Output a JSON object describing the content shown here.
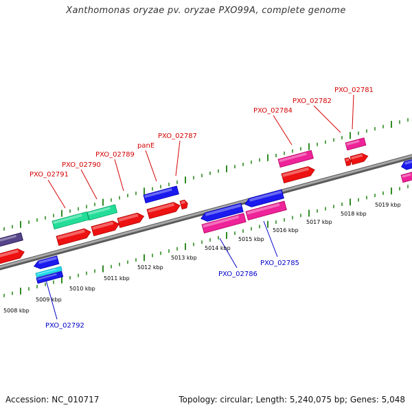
{
  "title": "Xanthomonas oryzae pv. oryzae PXO99A, complete genome",
  "accession": "Accession: NC_010717",
  "summary": "Topology: circular; Length: 5,240,075 bp; Genes: 5,048",
  "colors": {
    "backbone": "#8c8c8c",
    "tick": "#2e8b22",
    "fwd_cds": "#ee1111",
    "fwd_gene_teal": "#22dd99",
    "fwd_gene_pink": "#ee2299",
    "rev_cds": "#1a1aee",
    "rev_gene_pink": "#ee2299",
    "rev_gene_cyan": "#22ddee",
    "purple": "#554488",
    "label_fwd": "#d40000",
    "label_rev": "#0000c8"
  },
  "tick_labels": [
    "5008 kbp",
    "5009 kbp",
    "5010 kbp",
    "5011 kbp",
    "5012 kbp",
    "5013 kbp",
    "5014 kbp",
    "5015 kbp",
    "5016 kbp",
    "5017 kbp",
    "5018 kbp",
    "5019 kbp"
  ],
  "forward_genes": [
    "PXO_02791",
    "PXO_02790",
    "PXO_02789",
    "panE",
    "PXO_02787",
    "PXO_02784",
    "PXO_02782",
    "PXO_02781"
  ],
  "reverse_genes": [
    "PXO_02792",
    "PXO_02786",
    "PXO_02785"
  ]
}
